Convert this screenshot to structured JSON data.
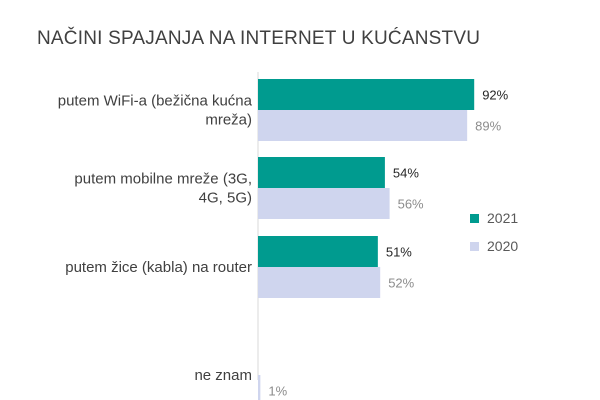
{
  "chart_data": {
    "type": "bar",
    "orientation": "horizontal",
    "title": "NAČINI SPAJANJA NA INTERNET U KUĆANSTVU",
    "categories": [
      [
        "putem WiFi-a (bežična kućna",
        "mreža)"
      ],
      [
        "putem mobilne mreže (3G,",
        "4G, 5G)"
      ],
      [
        "putem žice (kabla) na router"
      ],
      [
        "ne znam"
      ]
    ],
    "series": [
      {
        "name": "2021",
        "color": "#009b8f",
        "values": [
          92,
          54,
          51,
          null
        ],
        "labels": [
          "92%",
          "54%",
          "51%",
          ""
        ]
      },
      {
        "name": "2020",
        "color": "#cfd5ee",
        "values": [
          89,
          56,
          52,
          1
        ],
        "labels": [
          "89%",
          "56%",
          "52%",
          "1%"
        ]
      }
    ],
    "xlim": [
      0,
      100
    ],
    "grid": false,
    "legend_position": "right"
  }
}
